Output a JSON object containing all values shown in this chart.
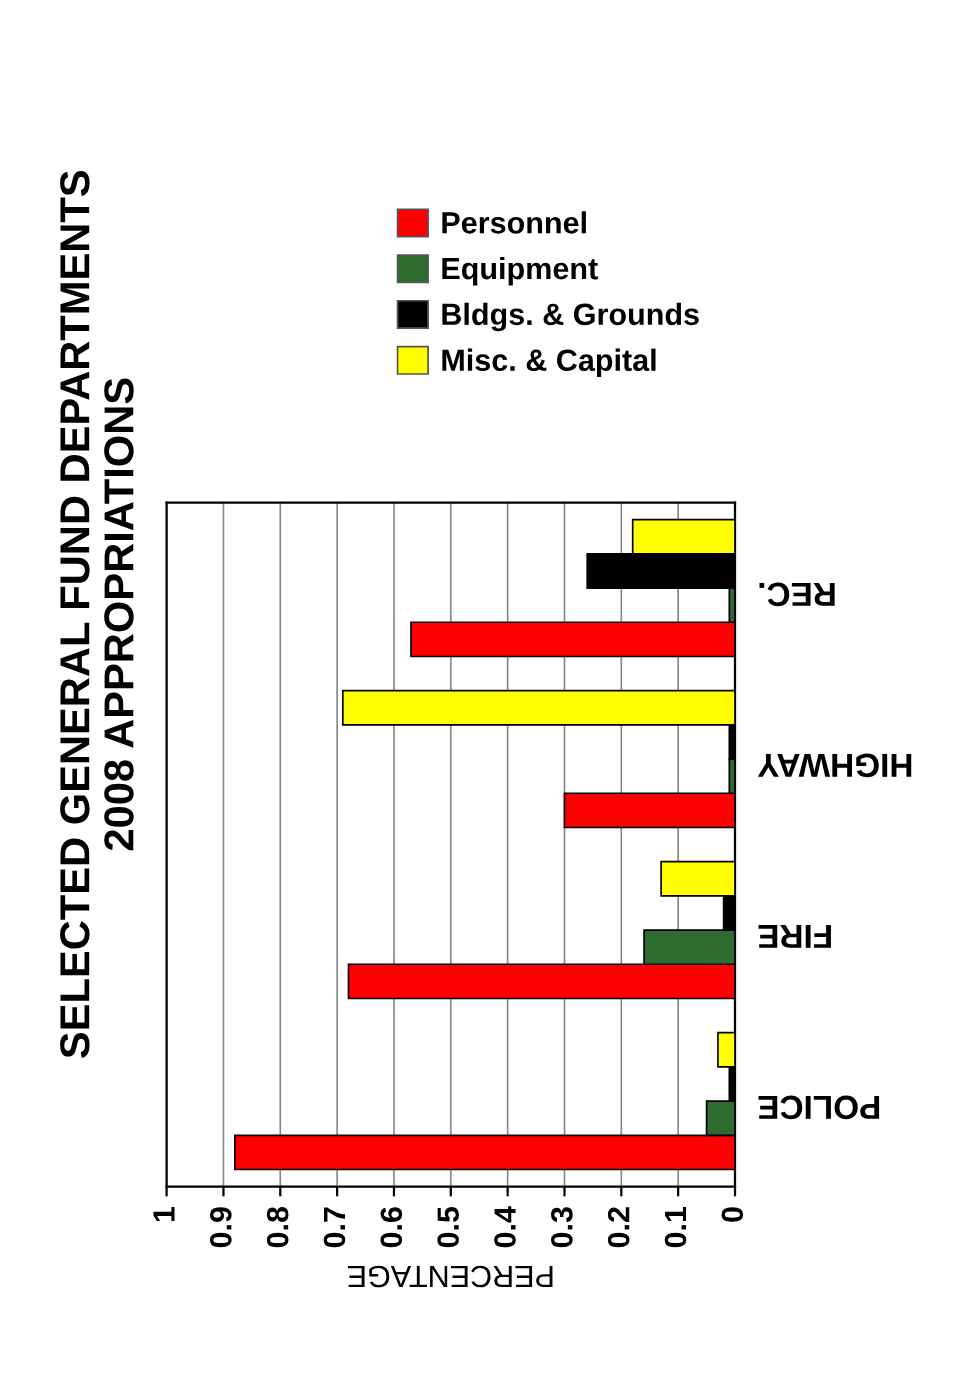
{
  "chart_data": {
    "type": "bar",
    "orientation": "horizontal",
    "title": "SELECTED GENERAL FUND DEPARTMENTS",
    "subtitle": "2008 APPROPRIATIONS",
    "xlabel": "PERCENTAGE",
    "categories": [
      "REC.",
      "HIGHWAY",
      "FIRE",
      "POLICE"
    ],
    "series": [
      {
        "name": "Personnel",
        "color": "#ff0000",
        "values": [
          0.57,
          0.3,
          0.68,
          0.88
        ]
      },
      {
        "name": "Equipment",
        "color": "#2e6b2e",
        "values": [
          0.01,
          0.01,
          0.16,
          0.05
        ]
      },
      {
        "name": "Bldgs. & Grounds",
        "color": "#000000",
        "values": [
          0.26,
          0.01,
          0.02,
          0.01
        ]
      },
      {
        "name": "Misc. & Capital",
        "color": "#ffff00",
        "values": [
          0.18,
          0.69,
          0.13,
          0.03
        ]
      }
    ],
    "xlim": [
      1,
      0
    ],
    "xticks": [
      1,
      0.9,
      0.8,
      0.7,
      0.6,
      0.5,
      0.4,
      0.3,
      0.2,
      0.1,
      0
    ],
    "grid": "x",
    "legend": "top"
  }
}
